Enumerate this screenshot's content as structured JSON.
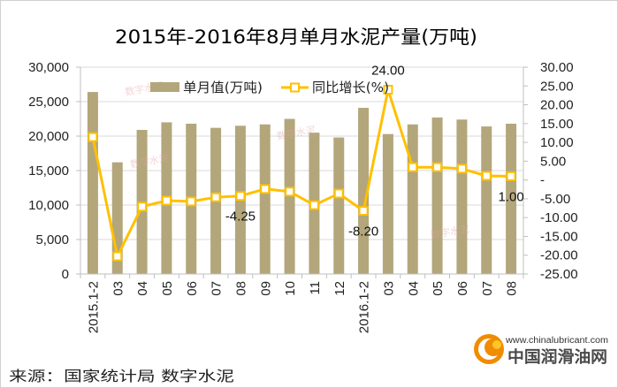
{
  "source": "来源：国家统计局  数字水泥",
  "watermark": "数字水泥",
  "logo": {
    "url_text": "www.chinalubricant.com",
    "name": "中国润滑油网",
    "icon": "orange-swirl-logo-icon",
    "color": "#f08c00",
    "accent": "#ffc627"
  },
  "chart_data": {
    "type": "bar",
    "title": "2015年-2016年8月单月水泥产量(万吨)",
    "categories": [
      "2015.1-2",
      "03",
      "04",
      "05",
      "06",
      "07",
      "08",
      "09",
      "10",
      "11",
      "12",
      "2016.1-2",
      "03",
      "04",
      "05",
      "06",
      "07",
      "08"
    ],
    "series": [
      {
        "name": "单月值(万吨)",
        "type": "bar",
        "axis": "left",
        "color": "#b3a67b",
        "values": [
          26400,
          16200,
          20900,
          22000,
          21800,
          21200,
          21500,
          21700,
          22500,
          20500,
          19800,
          24100,
          20300,
          21700,
          22700,
          22400,
          21400,
          21800
        ]
      },
      {
        "name": "同比增长(%)",
        "type": "line",
        "axis": "right",
        "color": "#ffc000",
        "marker": "square",
        "values": [
          11.4,
          -20.3,
          -7.1,
          -5.5,
          -5.7,
          -4.6,
          -4.25,
          -2.4,
          -3.1,
          -6.7,
          -3.6,
          -8.2,
          24.0,
          3.4,
          3.4,
          3.0,
          1.1,
          1.0
        ]
      }
    ],
    "y_left": {
      "min": 0,
      "max": 30000,
      "step": 5000,
      "tick_labels": [
        "0",
        "5,000",
        "10,000",
        "15,000",
        "20,000",
        "25,000",
        "30,000"
      ]
    },
    "y_right": {
      "min": -25,
      "max": 30,
      "step": 5,
      "tick_labels": [
        "-25.00",
        "-20.00",
        "-15.00",
        "-10.00",
        "-5.00",
        "-",
        "5.00",
        "10.00",
        "15.00",
        "20.00",
        "25.00",
        "30.00"
      ]
    },
    "data_labels": [
      {
        "series": 1,
        "index": 6,
        "text": "-4.25",
        "position": "below"
      },
      {
        "series": 1,
        "index": 11,
        "text": "-8.20",
        "position": "below"
      },
      {
        "series": 1,
        "index": 12,
        "text": "24.00",
        "position": "above"
      },
      {
        "series": 1,
        "index": 17,
        "text": "1.00",
        "position": "below"
      }
    ],
    "grid": true,
    "legend": "top"
  }
}
